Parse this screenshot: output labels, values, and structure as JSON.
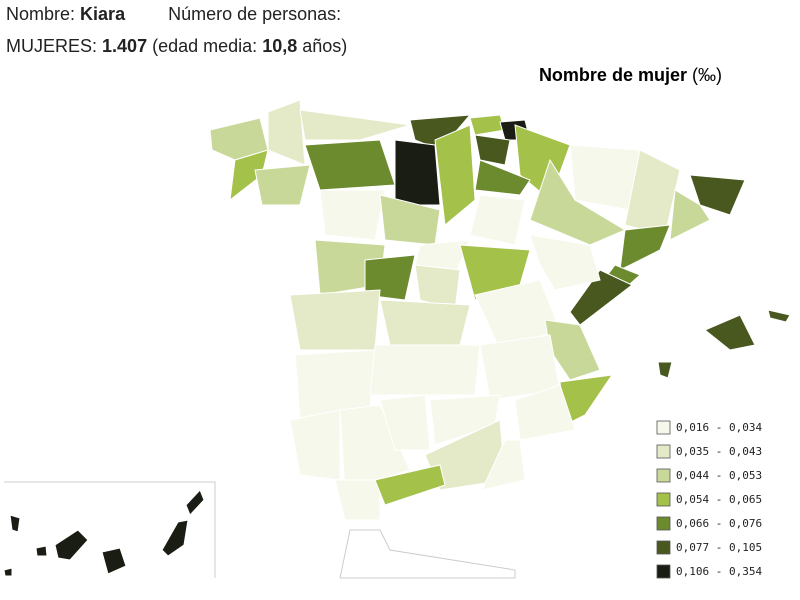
{
  "header": {
    "name_label": "Nombre:",
    "name": "Kiara",
    "count_label": "Número de personas:",
    "group_label": "MUJERES:",
    "count": "1.407",
    "age_label": "(edad media:",
    "age": "10,8",
    "age_unit": "años)"
  },
  "legend": {
    "title": "Nombre de mujer",
    "unit": "(‰)",
    "items": [
      {
        "label": "0,016 - 0,034",
        "color": "#f7f8ec"
      },
      {
        "label": "0,035 - 0,043",
        "color": "#e4eac8"
      },
      {
        "label": "0,044 - 0,053",
        "color": "#c8d898"
      },
      {
        "label": "0,054 - 0,065",
        "color": "#a4c14a"
      },
      {
        "label": "0,066 - 0,076",
        "color": "#6c8a2e"
      },
      {
        "label": "0,077 - 0,105",
        "color": "#48581f"
      },
      {
        "label": "0,106 - 0,354",
        "color": "#191d13"
      }
    ]
  }
}
